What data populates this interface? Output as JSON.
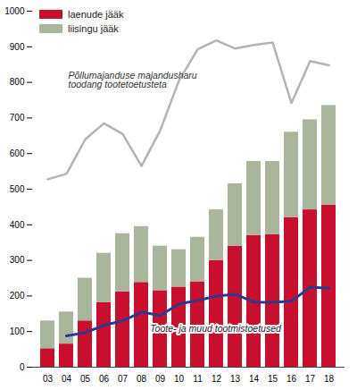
{
  "chart_data": {
    "type": "bar",
    "stacked": true,
    "legend": "top-left",
    "categories": [
      "03",
      "04",
      "05",
      "06",
      "07",
      "08",
      "09",
      "10",
      "11",
      "12",
      "13",
      "14",
      "15",
      "16",
      "17",
      "18"
    ],
    "series": [
      {
        "name": "laenude jääk",
        "type": "bar",
        "color": "#c8102e",
        "values": [
          52,
          65,
          130,
          182,
          212,
          238,
          215,
          225,
          240,
          300,
          340,
          370,
          372,
          420,
          442,
          455
        ]
      },
      {
        "name": "liisingu jääk",
        "type": "bar",
        "color": "#a9b59c",
        "values": [
          78,
          90,
          120,
          138,
          163,
          157,
          125,
          105,
          125,
          142,
          175,
          208,
          206,
          240,
          253,
          280
        ]
      },
      {
        "name": "Põllumajanduse majandusharu toodang tootetoetusteta",
        "type": "line",
        "color": "#b3b3b3",
        "values": [
          528,
          543,
          640,
          685,
          655,
          565,
          665,
          805,
          893,
          918,
          895,
          905,
          912,
          742,
          860,
          848
        ]
      },
      {
        "name": "Toote- ja muud tootmistoetused",
        "type": "line",
        "color": "#2b3990",
        "values": [
          null,
          88,
          97,
          118,
          130,
          155,
          145,
          178,
          187,
          200,
          205,
          183,
          182,
          185,
          225,
          222
        ]
      }
    ],
    "ylim": [
      0,
      1000
    ],
    "yticks": [
      0,
      100,
      200,
      300,
      400,
      500,
      600,
      700,
      800,
      900,
      1000
    ]
  }
}
